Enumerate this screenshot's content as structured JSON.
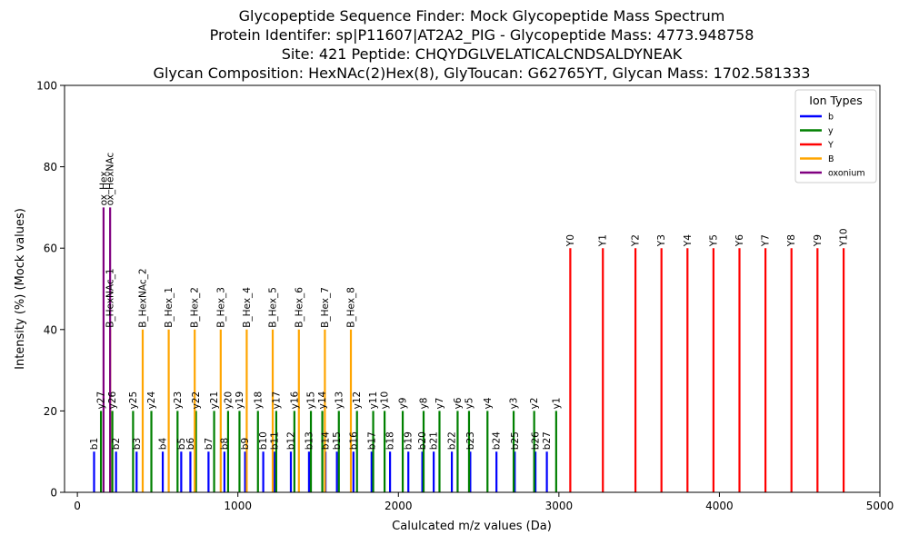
{
  "chart_data": {
    "type": "bar",
    "title_lines": [
      "Glycopeptide Sequence Finder: Mock Glycopeptide Mass Spectrum",
      "Protein Identifer: sp|P11607|AT2A2_PIG - Glycopeptide Mass: 4773.948758",
      "Site: 421 Peptide: CHQYDGLVELATICALCNDSALDYNEAK",
      "Glycan Composition: HexNAc(2)Hex(8), GlyToucan: G62765YT, Glycan Mass: 1702.581333"
    ],
    "xlabel": "Calulcated m/z values (Da)",
    "ylabel": "Intensity (%) (Mock values)",
    "xlim": [
      -80,
      5000
    ],
    "ylim": [
      0,
      100
    ],
    "xticks": [
      0,
      1000,
      2000,
      3000,
      4000,
      5000
    ],
    "yticks": [
      0,
      20,
      40,
      60,
      80,
      100
    ],
    "grid": false,
    "legend": {
      "title": "Ion Types",
      "placement": "top-right",
      "entries": [
        {
          "name": "b",
          "color": "#0000ff"
        },
        {
          "name": "y",
          "color": "#008000"
        },
        {
          "name": "Y",
          "color": "#ff0000"
        },
        {
          "name": "B",
          "color": "#ffa500"
        },
        {
          "name": "oxonium",
          "color": "#800080"
        }
      ]
    },
    "series": [
      {
        "type_key": "b",
        "color": "#0000ff",
        "intensity": 10,
        "points": [
          {
            "label": "b1",
            "x": 104
          },
          {
            "label": "b2",
            "x": 241
          },
          {
            "label": "b3",
            "x": 369
          },
          {
            "label": "b4",
            "x": 532
          },
          {
            "label": "b5",
            "x": 647
          },
          {
            "label": "b6",
            "x": 704
          },
          {
            "label": "b7",
            "x": 817
          },
          {
            "label": "b8",
            "x": 916
          },
          {
            "label": "b9",
            "x": 1045
          },
          {
            "label": "b10",
            "x": 1158
          },
          {
            "label": "b11",
            "x": 1229
          },
          {
            "label": "b12",
            "x": 1330
          },
          {
            "label": "b13",
            "x": 1443
          },
          {
            "label": "b14",
            "x": 1546
          },
          {
            "label": "b15",
            "x": 1617
          },
          {
            "label": "b16",
            "x": 1720
          },
          {
            "label": "b17",
            "x": 1833
          },
          {
            "label": "b18",
            "x": 1948
          },
          {
            "label": "b19",
            "x": 2062
          },
          {
            "label": "b20",
            "x": 2149
          },
          {
            "label": "b21",
            "x": 2220
          },
          {
            "label": "b22",
            "x": 2333
          },
          {
            "label": "b23",
            "x": 2448
          },
          {
            "label": "b24",
            "x": 2611
          },
          {
            "label": "b25",
            "x": 2725
          },
          {
            "label": "b26",
            "x": 2854
          },
          {
            "label": "b27",
            "x": 2925
          }
        ]
      },
      {
        "type_key": "y",
        "color": "#008000",
        "intensity": 20,
        "points": [
          {
            "label": "y27",
            "x": 147
          },
          {
            "label": "y26",
            "x": 218
          },
          {
            "label": "y25",
            "x": 347
          },
          {
            "label": "y24",
            "x": 461
          },
          {
            "label": "y23",
            "x": 624
          },
          {
            "label": "y22",
            "x": 739
          },
          {
            "label": "y21",
            "x": 852
          },
          {
            "label": "y20",
            "x": 939
          },
          {
            "label": "y19",
            "x": 1010
          },
          {
            "label": "y18",
            "x": 1125
          },
          {
            "label": "y17",
            "x": 1239
          },
          {
            "label": "y16",
            "x": 1352
          },
          {
            "label": "y15",
            "x": 1455
          },
          {
            "label": "y14",
            "x": 1526
          },
          {
            "label": "y13",
            "x": 1629
          },
          {
            "label": "y12",
            "x": 1742
          },
          {
            "label": "y11",
            "x": 1843
          },
          {
            "label": "y10",
            "x": 1914
          },
          {
            "label": "y9",
            "x": 2027
          },
          {
            "label": "y8",
            "x": 2157
          },
          {
            "label": "y7",
            "x": 2256
          },
          {
            "label": "y6",
            "x": 2369
          },
          {
            "label": "y5",
            "x": 2440
          },
          {
            "label": "y4",
            "x": 2555
          },
          {
            "label": "y3",
            "x": 2718
          },
          {
            "label": "y2",
            "x": 2846
          },
          {
            "label": "y1",
            "x": 2983
          }
        ]
      },
      {
        "type_key": "Y",
        "color": "#ff0000",
        "intensity": 60,
        "points": [
          {
            "label": "Y0",
            "x": 3071
          },
          {
            "label": "Y1",
            "x": 3274
          },
          {
            "label": "Y2",
            "x": 3477
          },
          {
            "label": "Y3",
            "x": 3639
          },
          {
            "label": "Y4",
            "x": 3801
          },
          {
            "label": "Y5",
            "x": 3963
          },
          {
            "label": "Y6",
            "x": 4125
          },
          {
            "label": "Y7",
            "x": 4287
          },
          {
            "label": "Y8",
            "x": 4449
          },
          {
            "label": "Y9",
            "x": 4611
          },
          {
            "label": "Y10",
            "x": 4774
          }
        ]
      },
      {
        "type_key": "B",
        "color": "#ffa500",
        "intensity": 40,
        "points": [
          {
            "label": "B_HexNAc_1",
            "x": 204
          },
          {
            "label": "B_HexNAc_2",
            "x": 407
          },
          {
            "label": "B_Hex_1",
            "x": 569
          },
          {
            "label": "B_Hex_2",
            "x": 731
          },
          {
            "label": "B_Hex_3",
            "x": 893
          },
          {
            "label": "B_Hex_4",
            "x": 1055
          },
          {
            "label": "B_Hex_5",
            "x": 1217
          },
          {
            "label": "B_Hex_6",
            "x": 1380
          },
          {
            "label": "B_Hex_7",
            "x": 1542
          },
          {
            "label": "B_Hex_8",
            "x": 1704
          }
        ]
      },
      {
        "type_key": "oxonium",
        "color": "#800080",
        "intensity": 70,
        "points": [
          {
            "label": "ox_Hex",
            "x": 163
          },
          {
            "label": "ox_HexNAc",
            "x": 204
          }
        ]
      }
    ]
  }
}
